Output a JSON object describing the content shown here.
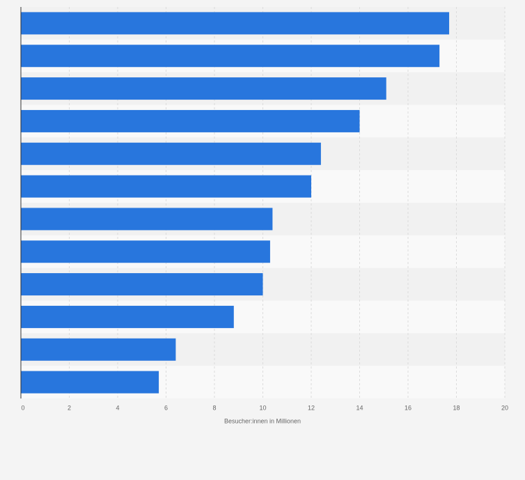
{
  "chart_data": {
    "type": "hbar",
    "categories": [
      null,
      null,
      null,
      null,
      null,
      null,
      null,
      null,
      null,
      null,
      null,
      null
    ],
    "values": [
      17.7,
      17.3,
      15.1,
      14.0,
      12.4,
      12.0,
      10.4,
      10.3,
      10.0,
      8.8,
      6.4,
      5.7
    ],
    "color": "#2876dd",
    "xlabel": "Besucher:innen in Millionen",
    "xlim": [
      0,
      20
    ],
    "xticks": [
      0,
      2,
      4,
      6,
      8,
      10,
      12,
      14,
      16,
      18,
      20
    ],
    "grid": true
  }
}
